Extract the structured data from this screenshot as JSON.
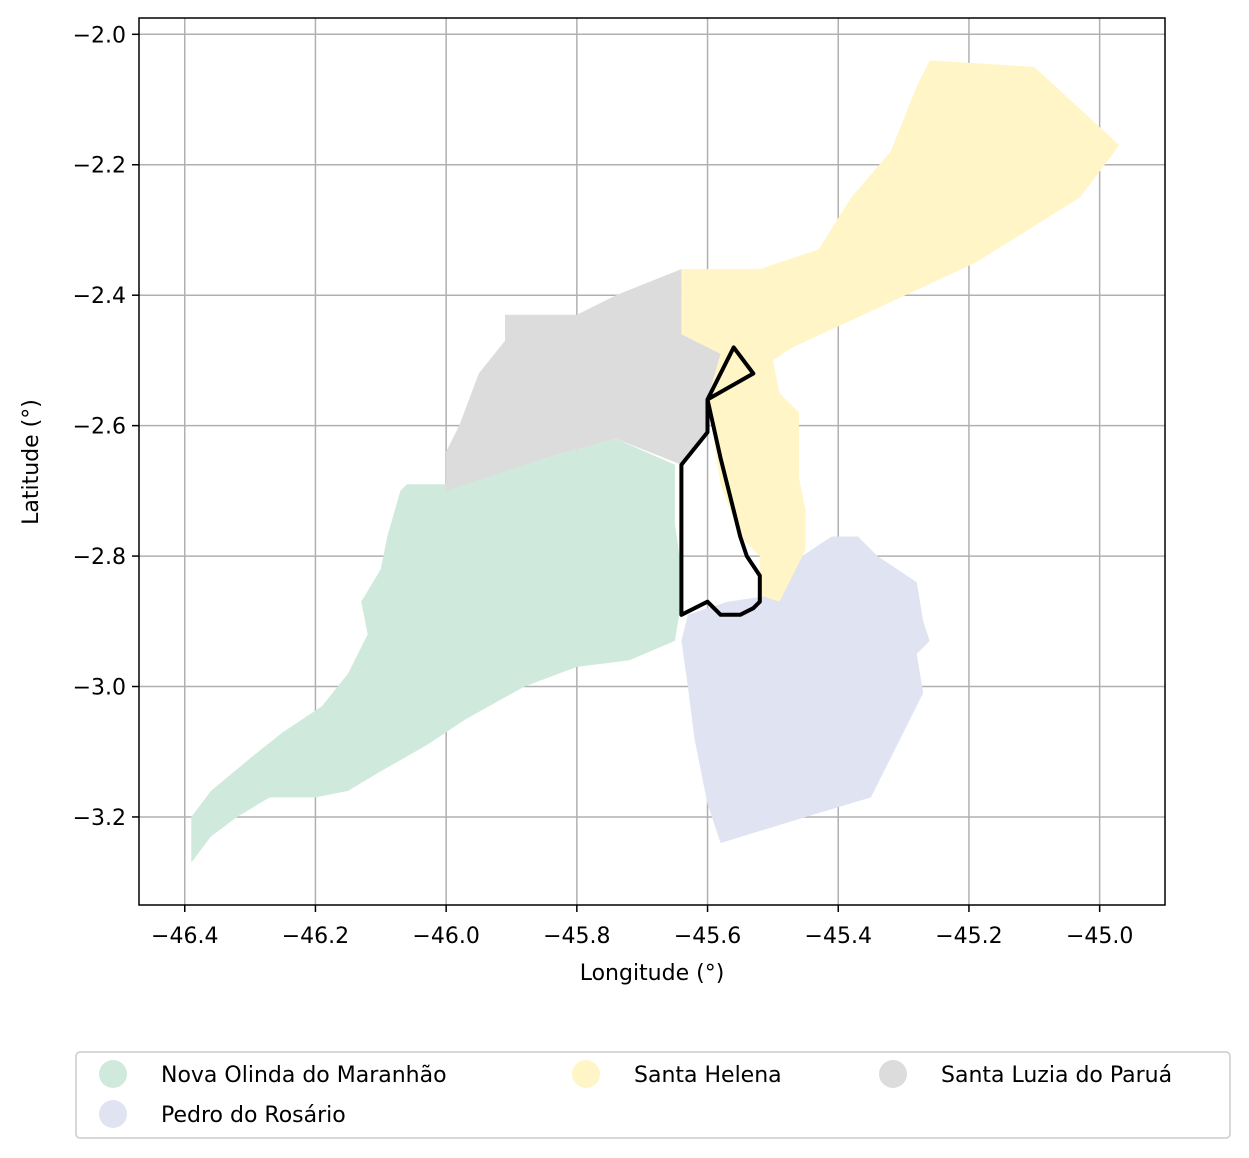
{
  "chart_data": {
    "type": "map",
    "xlabel": "Longitude (°)",
    "ylabel": "Latitude (°)",
    "xlim": [
      -46.47,
      -44.9
    ],
    "ylim": [
      -3.335,
      -1.975
    ],
    "xticks": [
      -46.4,
      -46.2,
      -46.0,
      -45.8,
      -45.6,
      -45.4,
      -45.2,
      -45.0
    ],
    "xtick_labels": [
      "−46.4",
      "−46.2",
      "−46.0",
      "−45.8",
      "−45.6",
      "−45.4",
      "−45.2",
      "−45.0"
    ],
    "yticks": [
      -2.0,
      -2.2,
      -2.4,
      -2.6,
      -2.8,
      -3.0,
      -3.2
    ],
    "ytick_labels": [
      "−2.0",
      "−2.2",
      "−2.4",
      "−2.6",
      "−2.8",
      "−3.0",
      "−3.2"
    ],
    "grid": true,
    "legend_position": "bottom-center",
    "regions": [
      {
        "name": "Nova Olinda do Maranhão",
        "color": "#cfeadc",
        "polygon": [
          [
            -46.39,
            -3.27
          ],
          [
            -46.39,
            -3.2
          ],
          [
            -46.36,
            -3.16
          ],
          [
            -46.3,
            -3.11
          ],
          [
            -46.25,
            -3.07
          ],
          [
            -46.19,
            -3.03
          ],
          [
            -46.15,
            -2.98
          ],
          [
            -46.12,
            -2.92
          ],
          [
            -46.13,
            -2.87
          ],
          [
            -46.1,
            -2.82
          ],
          [
            -46.09,
            -2.77
          ],
          [
            -46.07,
            -2.7
          ],
          [
            -46.06,
            -2.69
          ],
          [
            -46.0,
            -2.69
          ],
          [
            -45.85,
            -2.65
          ],
          [
            -45.74,
            -2.62
          ],
          [
            -45.65,
            -2.66
          ],
          [
            -45.65,
            -2.75
          ],
          [
            -45.64,
            -2.82
          ],
          [
            -45.64,
            -2.87
          ],
          [
            -45.65,
            -2.93
          ],
          [
            -45.72,
            -2.96
          ],
          [
            -45.8,
            -2.97
          ],
          [
            -45.88,
            -3.0
          ],
          [
            -45.97,
            -3.05
          ],
          [
            -46.03,
            -3.09
          ],
          [
            -46.1,
            -3.13
          ],
          [
            -46.15,
            -3.16
          ],
          [
            -46.2,
            -3.17
          ],
          [
            -46.27,
            -3.17
          ],
          [
            -46.32,
            -3.2
          ],
          [
            -46.36,
            -3.23
          ]
        ]
      },
      {
        "name": "Pedro do Rosário",
        "color": "#dfe3f2",
        "polygon": [
          [
            -45.64,
            -2.93
          ],
          [
            -45.63,
            -2.89
          ],
          [
            -45.57,
            -2.87
          ],
          [
            -45.5,
            -2.86
          ],
          [
            -45.47,
            -2.81
          ],
          [
            -45.44,
            -2.79
          ],
          [
            -45.41,
            -2.77
          ],
          [
            -45.37,
            -2.77
          ],
          [
            -45.34,
            -2.8
          ],
          [
            -45.31,
            -2.82
          ],
          [
            -45.28,
            -2.84
          ],
          [
            -45.27,
            -2.9
          ],
          [
            -45.26,
            -2.93
          ],
          [
            -45.28,
            -2.95
          ],
          [
            -45.27,
            -3.01
          ],
          [
            -45.3,
            -3.07
          ],
          [
            -45.33,
            -3.13
          ],
          [
            -45.35,
            -3.17
          ],
          [
            -45.45,
            -3.2
          ],
          [
            -45.58,
            -3.24
          ],
          [
            -45.6,
            -3.18
          ],
          [
            -45.62,
            -3.08
          ],
          [
            -45.63,
            -3.0
          ]
        ]
      },
      {
        "name": "Santa Helena",
        "color": "#fff5c7",
        "polygon": [
          [
            -45.64,
            -2.46
          ],
          [
            -45.64,
            -2.36
          ],
          [
            -45.52,
            -2.36
          ],
          [
            -45.43,
            -2.33
          ],
          [
            -45.38,
            -2.25
          ],
          [
            -45.32,
            -2.18
          ],
          [
            -45.28,
            -2.08
          ],
          [
            -45.26,
            -2.04
          ],
          [
            -45.1,
            -2.05
          ],
          [
            -44.97,
            -2.17
          ],
          [
            -45.03,
            -2.25
          ],
          [
            -45.19,
            -2.35
          ],
          [
            -45.34,
            -2.42
          ],
          [
            -45.47,
            -2.48
          ],
          [
            -45.5,
            -2.5
          ],
          [
            -45.49,
            -2.55
          ],
          [
            -45.46,
            -2.58
          ],
          [
            -45.46,
            -2.68
          ],
          [
            -45.45,
            -2.73
          ],
          [
            -45.45,
            -2.79
          ],
          [
            -45.47,
            -2.83
          ],
          [
            -45.49,
            -2.87
          ],
          [
            -45.52,
            -2.86
          ],
          [
            -45.52,
            -2.8
          ],
          [
            -45.55,
            -2.77
          ],
          [
            -45.58,
            -2.69
          ],
          [
            -45.6,
            -2.56
          ],
          [
            -45.58,
            -2.49
          ]
        ]
      },
      {
        "name": "Santa Luzia do Paruá",
        "color": "#dcdcdc",
        "polygon": [
          [
            -46.0,
            -2.7
          ],
          [
            -46.0,
            -2.64
          ],
          [
            -45.98,
            -2.6
          ],
          [
            -45.95,
            -2.52
          ],
          [
            -45.91,
            -2.47
          ],
          [
            -45.91,
            -2.43
          ],
          [
            -45.8,
            -2.43
          ],
          [
            -45.74,
            -2.4
          ],
          [
            -45.64,
            -2.36
          ],
          [
            -45.64,
            -2.46
          ],
          [
            -45.58,
            -2.49
          ],
          [
            -45.6,
            -2.56
          ],
          [
            -45.6,
            -2.61
          ],
          [
            -45.64,
            -2.66
          ],
          [
            -45.74,
            -2.62
          ],
          [
            -45.85,
            -2.65
          ]
        ]
      }
    ],
    "highlight_outline": {
      "color": "#000000",
      "polygon": [
        [
          -45.64,
          -2.66
        ],
        [
          -45.6,
          -2.61
        ],
        [
          -45.6,
          -2.56
        ],
        [
          -45.56,
          -2.48
        ],
        [
          -45.53,
          -2.52
        ],
        [
          -45.6,
          -2.56
        ],
        [
          -45.58,
          -2.65
        ],
        [
          -45.56,
          -2.73
        ],
        [
          -45.55,
          -2.77
        ],
        [
          -45.54,
          -2.8
        ],
        [
          -45.52,
          -2.83
        ],
        [
          -45.52,
          -2.87
        ],
        [
          -45.53,
          -2.88
        ],
        [
          -45.55,
          -2.89
        ],
        [
          -45.58,
          -2.89
        ],
        [
          -45.6,
          -2.87
        ],
        [
          -45.64,
          -2.89
        ]
      ]
    }
  }
}
